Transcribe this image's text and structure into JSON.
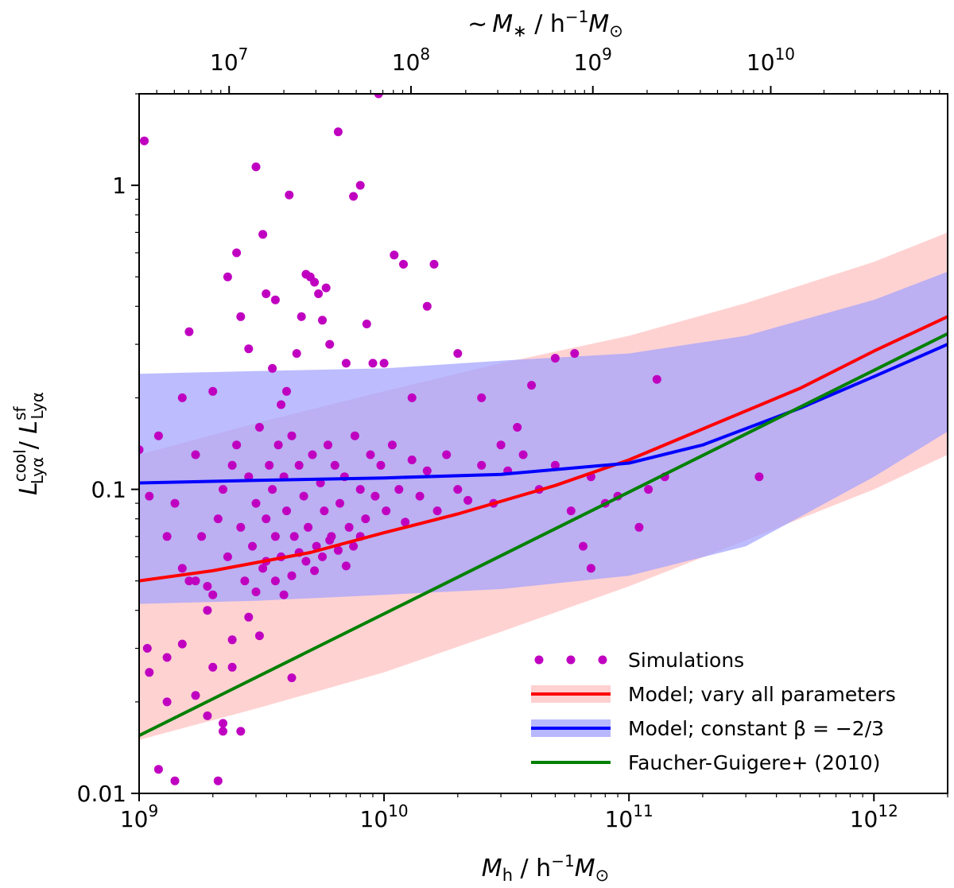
{
  "chart_data": {
    "type": "scatter",
    "xscale": "log",
    "yscale": "log",
    "xlim": [
      1000000000.0,
      2000000000000.0
    ],
    "ylim": [
      0.01,
      2.0
    ],
    "xlabel_main": "M",
    "xlabel_sub": "h",
    "xlabel_rest": " / h",
    "xlabel_exp": "−1",
    "xlabel_end": "M",
    "xlabel_odot": "⊙",
    "ylabel_L1": "L",
    "ylabel_sup1": "cool",
    "ylabel_sub1": "Lyα",
    "ylabel_sep": " / ",
    "ylabel_L2": "L",
    "ylabel_sup2": "sf",
    "ylabel_sub2": "Lyα",
    "top_label_tilde": "∼",
    "top_label_M": "M",
    "top_label_star": "∗",
    "top_label_rest": " / h",
    "top_label_exp": "−1",
    "top_label_end": "M",
    "top_label_odot": "⊙",
    "x_ticks": [
      {
        "value": 1000000000.0,
        "base": "10",
        "exp": "9"
      },
      {
        "value": 10000000000.0,
        "base": "10",
        "exp": "10"
      },
      {
        "value": 100000000000.0,
        "base": "10",
        "exp": "11"
      },
      {
        "value": 1000000000000.0,
        "base": "10",
        "exp": "12"
      }
    ],
    "y_ticks": [
      {
        "value": 0.01,
        "label": "0.01"
      },
      {
        "value": 0.1,
        "label": "0.1"
      },
      {
        "value": 1,
        "label": "1"
      }
    ],
    "top_ticks": [
      {
        "value": 10000000.0,
        "base": "10",
        "exp": "7"
      },
      {
        "value": 100000000.0,
        "base": "10",
        "exp": "8"
      },
      {
        "value": 1000000000.0,
        "base": "10",
        "exp": "9"
      },
      {
        "value": 10000000000.0,
        "base": "10",
        "exp": "10"
      }
    ],
    "top_axis_mapping": {
      "stellar_mass_at_halo": [
        [
          1000000000.0,
          3200000.0
        ],
        [
          100000000000.0,
          1580000000.0
        ],
        [
          2000000000000.0,
          100000000000.0
        ]
      ]
    },
    "bands": [
      {
        "name": "Model; vary all parameters",
        "color": "#ffc0c0",
        "opacity": 0.72,
        "x": [
          1000000000.0,
          3000000000.0,
          10000000000.0,
          30000000000.0,
          100000000000.0,
          300000000000.0,
          1000000000000.0,
          2000000000000.0
        ],
        "lower": [
          0.015,
          0.019,
          0.025,
          0.034,
          0.048,
          0.068,
          0.1,
          0.13
        ],
        "upper": [
          0.13,
          0.165,
          0.21,
          0.26,
          0.32,
          0.41,
          0.56,
          0.7
        ]
      },
      {
        "name": "Model; constant β = −2/3",
        "color": "#a0a0ff",
        "opacity": 0.7,
        "x": [
          1000000000.0,
          3000000000.0,
          10000000000.0,
          30000000000.0,
          100000000000.0,
          300000000000.0,
          1000000000000.0,
          2000000000000.0
        ],
        "lower": [
          0.042,
          0.043,
          0.045,
          0.047,
          0.052,
          0.065,
          0.11,
          0.155
        ],
        "upper": [
          0.24,
          0.245,
          0.25,
          0.265,
          0.28,
          0.32,
          0.42,
          0.52
        ]
      }
    ],
    "series": [
      {
        "name": "Model; vary all parameters",
        "color": "#ff0000",
        "type": "line",
        "x": [
          1000000000.0,
          2000000000.0,
          5000000000.0,
          10000000000.0,
          20000000000.0,
          50000000000.0,
          100000000000.0,
          200000000000.0,
          500000000000.0,
          1000000000000.0,
          2000000000000.0
        ],
        "y": [
          0.05,
          0.054,
          0.062,
          0.072,
          0.083,
          0.103,
          0.125,
          0.158,
          0.215,
          0.285,
          0.37
        ]
      },
      {
        "name": "Model; constant β = −2/3",
        "color": "#0000ff",
        "type": "line",
        "x": [
          1000000000.0,
          3000000000.0,
          10000000000.0,
          30000000000.0,
          100000000000.0,
          200000000000.0,
          500000000000.0,
          1000000000000.0,
          2000000000000.0
        ],
        "y": [
          0.105,
          0.107,
          0.109,
          0.112,
          0.122,
          0.14,
          0.185,
          0.235,
          0.3
        ]
      },
      {
        "name": "Faucher-Guigere+ (2010)",
        "color": "#008000",
        "type": "line",
        "x": [
          1000000000.0,
          2000000000000.0
        ],
        "y": [
          0.0155,
          0.325
        ]
      }
    ],
    "scatter": {
      "name": "Simulations",
      "color": "#c000c0",
      "points": [
        [
          1050000000.0,
          1.4
        ],
        [
          1000000000.0,
          0.135
        ],
        [
          1080000000.0,
          0.03
        ],
        [
          1200000000.0,
          0.012
        ],
        [
          1300000000.0,
          0.02
        ],
        [
          1400000000.0,
          0.011
        ],
        [
          1500000000.0,
          0.2
        ],
        [
          1600000000.0,
          0.33
        ],
        [
          1700000000.0,
          0.05
        ],
        [
          1900000000.0,
          0.04
        ],
        [
          2000000000.0,
          0.21
        ],
        [
          2100000000.0,
          0.011
        ],
        [
          2200000000.0,
          0.017
        ],
        [
          2300000000.0,
          0.5
        ],
        [
          2400000000.0,
          0.026
        ],
        [
          2500000000.0,
          0.6
        ],
        [
          2600000000.0,
          0.37
        ],
        [
          2800000000.0,
          0.29
        ],
        [
          3000000000.0,
          1.15
        ],
        [
          3100000000.0,
          0.033
        ],
        [
          3200000000.0,
          0.69
        ],
        [
          3300000000.0,
          0.44
        ],
        [
          3500000000.0,
          0.25
        ],
        [
          3600000000.0,
          0.42
        ],
        [
          3800000000.0,
          0.19
        ],
        [
          4000000000.0,
          0.21
        ],
        [
          4100000000.0,
          0.93
        ],
        [
          4200000000.0,
          0.024
        ],
        [
          4400000000.0,
          0.28
        ],
        [
          4600000000.0,
          0.37
        ],
        [
          4800000000.0,
          0.51
        ],
        [
          5000000000.0,
          0.5
        ],
        [
          5200000000.0,
          0.48
        ],
        [
          5400000000.0,
          0.44
        ],
        [
          5600000000.0,
          0.36
        ],
        [
          5800000000.0,
          0.46
        ],
        [
          6000000000.0,
          0.3
        ],
        [
          6500000000.0,
          1.5
        ],
        [
          7000000000.0,
          0.26
        ],
        [
          7500000000.0,
          0.92
        ],
        [
          8000000000.0,
          1.0
        ],
        [
          8500000000.0,
          0.35
        ],
        [
          9000000000.0,
          0.26
        ],
        [
          9500000000.0,
          2.0
        ],
        [
          10000000000.0,
          0.26
        ],
        [
          11000000000.0,
          0.59
        ],
        [
          12000000000.0,
          0.55
        ],
        [
          13000000000.0,
          0.2
        ],
        [
          15000000000.0,
          0.4
        ],
        [
          16000000000.0,
          0.55
        ],
        [
          20000000000.0,
          0.28
        ],
        [
          25000000000.0,
          0.2
        ],
        [
          30000000000.0,
          0.14
        ],
        [
          35000000000.0,
          0.16
        ],
        [
          40000000000.0,
          0.22
        ],
        [
          50000000000.0,
          0.27
        ],
        [
          60000000000.0,
          0.28
        ],
        [
          65000000000.0,
          0.065
        ],
        [
          70000000000.0,
          0.055
        ],
        [
          80000000000.0,
          0.09
        ],
        [
          90000000000.0,
          0.095
        ],
        [
          110000000000.0,
          0.075
        ],
        [
          120000000000.0,
          0.1
        ],
        [
          130000000000.0,
          0.23
        ],
        [
          140000000000.0,
          0.11
        ],
        [
          340000000000.0,
          0.11
        ],
        [
          1100000000.0,
          0.095
        ],
        [
          1200000000.0,
          0.15
        ],
        [
          1300000000.0,
          0.07
        ],
        [
          1400000000.0,
          0.09
        ],
        [
          1500000000.0,
          0.055
        ],
        [
          1600000000.0,
          0.05
        ],
        [
          1700000000.0,
          0.13
        ],
        [
          1800000000.0,
          0.07
        ],
        [
          1900000000.0,
          0.048
        ],
        [
          2000000000.0,
          0.045
        ],
        [
          2100000000.0,
          0.08
        ],
        [
          2200000000.0,
          0.1
        ],
        [
          2300000000.0,
          0.06
        ],
        [
          2400000000.0,
          0.12
        ],
        [
          2500000000.0,
          0.14
        ],
        [
          2600000000.0,
          0.075
        ],
        [
          2700000000.0,
          0.05
        ],
        [
          2800000000.0,
          0.11
        ],
        [
          2900000000.0,
          0.065
        ],
        [
          3000000000.0,
          0.09
        ],
        [
          3100000000.0,
          0.16
        ],
        [
          3200000000.0,
          0.055
        ],
        [
          3300000000.0,
          0.08
        ],
        [
          3400000000.0,
          0.12
        ],
        [
          3500000000.0,
          0.1
        ],
        [
          3600000000.0,
          0.07
        ],
        [
          3700000000.0,
          0.14
        ],
        [
          3800000000.0,
          0.06
        ],
        [
          3900000000.0,
          0.11
        ],
        [
          4000000000.0,
          0.085
        ],
        [
          4200000000.0,
          0.15
        ],
        [
          4300000000.0,
          0.07
        ],
        [
          4500000000.0,
          0.12
        ],
        [
          4700000000.0,
          0.095
        ],
        [
          4900000000.0,
          0.075
        ],
        [
          5100000000.0,
          0.13
        ],
        [
          5300000000.0,
          0.065
        ],
        [
          5500000000.0,
          0.105
        ],
        [
          5700000000.0,
          0.085
        ],
        [
          5900000000.0,
          0.14
        ],
        [
          6100000000.0,
          0.07
        ],
        [
          6300000000.0,
          0.12
        ],
        [
          6600000000.0,
          0.09
        ],
        [
          6900000000.0,
          0.11
        ],
        [
          7200000000.0,
          0.075
        ],
        [
          7600000000.0,
          0.15
        ],
        [
          8000000000.0,
          0.1
        ],
        [
          8400000000.0,
          0.08
        ],
        [
          8800000000.0,
          0.13
        ],
        [
          9200000000.0,
          0.095
        ],
        [
          9700000000.0,
          0.12
        ],
        [
          10200000000.0,
          0.085
        ],
        [
          10800000000.0,
          0.14
        ],
        [
          11500000000.0,
          0.1
        ],
        [
          12200000000.0,
          0.078
        ],
        [
          13000000000.0,
          0.125
        ],
        [
          14000000000.0,
          0.095
        ],
        [
          15000000000.0,
          0.115
        ],
        [
          16500000000.0,
          0.085
        ],
        [
          18000000000.0,
          0.13
        ],
        [
          20000000000.0,
          0.1
        ],
        [
          22000000000.0,
          0.092
        ],
        [
          25000000000.0,
          0.12
        ],
        [
          28000000000.0,
          0.09
        ],
        [
          32000000000.0,
          0.115
        ],
        [
          37000000000.0,
          0.13
        ],
        [
          43000000000.0,
          0.1
        ],
        [
          50000000000.0,
          0.12
        ],
        [
          58000000000.0,
          0.085
        ],
        [
          70000000000.0,
          0.11
        ],
        [
          1100000000.0,
          0.025
        ],
        [
          1300000000.0,
          0.028
        ],
        [
          1500000000.0,
          0.031
        ],
        [
          1700000000.0,
          0.021
        ],
        [
          1900000000.0,
          0.018
        ],
        [
          2000000000.0,
          0.026
        ],
        [
          2200000000.0,
          0.016
        ],
        [
          2400000000.0,
          0.032
        ],
        [
          2600000000.0,
          0.016
        ],
        [
          2800000000.0,
          0.038
        ],
        [
          3000000000.0,
          0.046
        ],
        [
          3300000000.0,
          0.058
        ],
        [
          3600000000.0,
          0.05
        ],
        [
          3900000000.0,
          0.045
        ],
        [
          4200000000.0,
          0.052
        ],
        [
          4500000000.0,
          0.062
        ],
        [
          4800000000.0,
          0.058
        ],
        [
          5200000000.0,
          0.054
        ],
        [
          5600000000.0,
          0.06
        ],
        [
          6000000000.0,
          0.068
        ],
        [
          6500000000.0,
          0.063
        ],
        [
          7000000000.0,
          0.056
        ],
        [
          7500000000.0,
          0.065
        ],
        [
          8000000000.0,
          0.07
        ]
      ]
    },
    "legend": {
      "position": "lower-right",
      "entries": [
        {
          "label": "Simulations",
          "kind": "points",
          "color": "#c000c0"
        },
        {
          "label": "Model; vary all parameters",
          "kind": "line-band",
          "color": "#ff0000",
          "band": "#ffc0c0"
        },
        {
          "label": "Model; constant β = −2/3",
          "kind": "line-band",
          "color": "#0000ff",
          "band": "#a0a0ff"
        },
        {
          "label": "Faucher-Guigere+ (2010)",
          "kind": "line",
          "color": "#008000"
        }
      ]
    }
  }
}
